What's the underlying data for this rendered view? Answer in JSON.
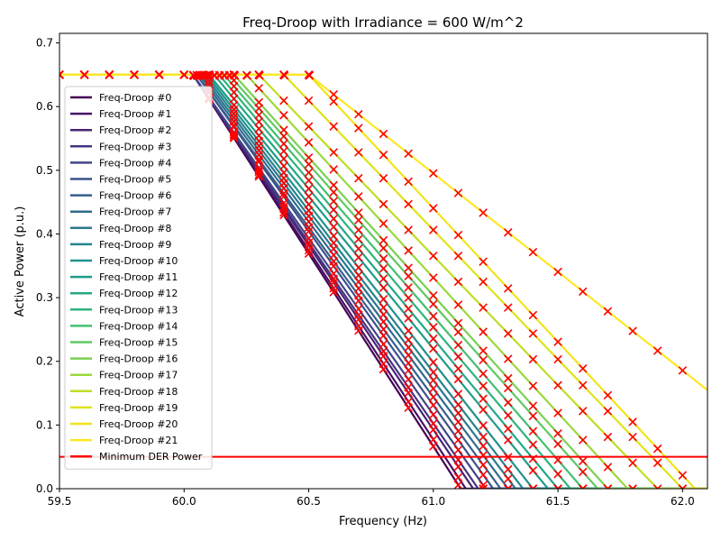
{
  "chart_data": {
    "type": "line",
    "title": "Freq-Droop with Irradiance = 600 W/m^2",
    "xlabel": "Frequency (Hz)",
    "ylabel": "Active Power (p.u.)",
    "xlim": [
      59.5,
      62.1
    ],
    "ylim": [
      0.0,
      0.715
    ],
    "xticks": [
      "59.5",
      "60.0",
      "60.5",
      "61.0",
      "61.5",
      "62.0"
    ],
    "yticks": [
      "0.0",
      "0.1",
      "0.2",
      "0.3",
      "0.4",
      "0.5",
      "0.6",
      "0.7"
    ],
    "legend": "upper-left",
    "series": [
      {
        "name": "Freq-Droop #0",
        "color": "#440154",
        "knee": 60.036,
        "zero": 61.11
      },
      {
        "name": "Freq-Droop #1",
        "color": "#471365",
        "knee": 60.036,
        "zero": 61.13
      },
      {
        "name": "Freq-Droop #2",
        "color": "#482475",
        "knee": 60.036,
        "zero": 61.16
      },
      {
        "name": "Freq-Droop #3",
        "color": "#463480",
        "knee": 60.036,
        "zero": 61.18
      },
      {
        "name": "Freq-Droop #4",
        "color": "#414487",
        "knee": 60.036,
        "zero": 61.21
      },
      {
        "name": "Freq-Droop #5",
        "color": "#3b528b",
        "knee": 60.05,
        "zero": 61.24
      },
      {
        "name": "Freq-Droop #6",
        "color": "#355f8d",
        "knee": 60.05,
        "zero": 61.27
      },
      {
        "name": "Freq-Droop #7",
        "color": "#2f6c8e",
        "knee": 60.06,
        "zero": 61.3
      },
      {
        "name": "Freq-Droop #8",
        "color": "#2a788e",
        "knee": 60.07,
        "zero": 61.33
      },
      {
        "name": "Freq-Droop #9",
        "color": "#25848e",
        "knee": 60.08,
        "zero": 61.36
      },
      {
        "name": "Freq-Droop #10",
        "color": "#21918c",
        "knee": 60.09,
        "zero": 61.4
      },
      {
        "name": "Freq-Droop #11",
        "color": "#1e9c89",
        "knee": 60.1,
        "zero": 61.46
      },
      {
        "name": "Freq-Droop #12",
        "color": "#22a884",
        "knee": 60.12,
        "zero": 61.5
      },
      {
        "name": "Freq-Droop #13",
        "color": "#2fb47c",
        "knee": 60.14,
        "zero": 61.55
      },
      {
        "name": "Freq-Droop #14",
        "color": "#44bf70",
        "knee": 60.16,
        "zero": 61.6
      },
      {
        "name": "Freq-Droop #15",
        "color": "#5ec962",
        "knee": 60.18,
        "zero": 61.66
      },
      {
        "name": "Freq-Droop #16",
        "color": "#7ad151",
        "knee": 60.2,
        "zero": 61.7
      },
      {
        "name": "Freq-Droop #17",
        "color": "#9bd93c",
        "knee": 60.25,
        "zero": 61.78
      },
      {
        "name": "Freq-Droop #18",
        "color": "#bddf26",
        "knee": 60.3,
        "zero": 61.9
      },
      {
        "name": "Freq-Droop #19",
        "color": "#dfe318",
        "knee": 60.4,
        "zero": 62.0
      },
      {
        "name": "Freq-Droop #20",
        "color": "#f0e51c",
        "knee": 60.5,
        "zero": 62.05
      },
      {
        "name": "Freq-Droop #21",
        "color": "#fde725",
        "knee": 60.5,
        "zero": 62.6
      }
    ],
    "plateau": 0.65,
    "sample_step": 0.1,
    "minimum_line": {
      "name": "Minimum DER Power",
      "value": 0.05,
      "color": "#ff0000"
    },
    "marker_color": "#ff0000"
  }
}
